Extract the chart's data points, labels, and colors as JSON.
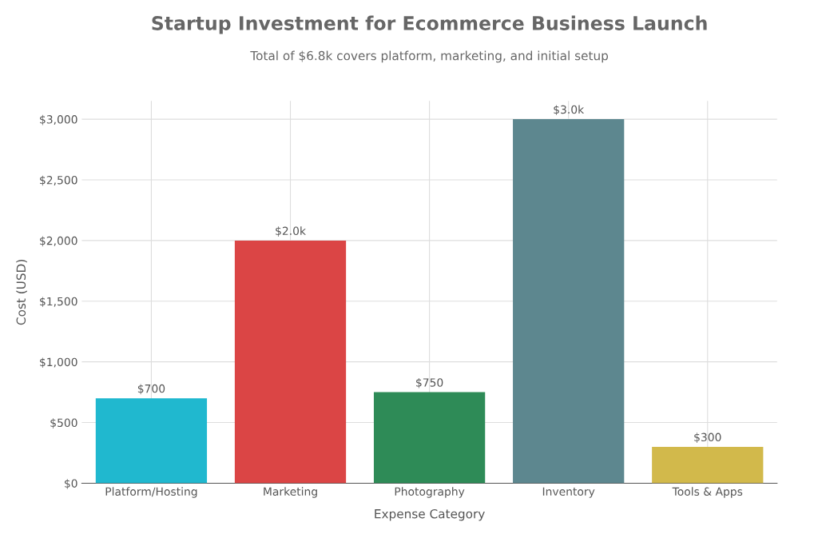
{
  "chart_data": {
    "type": "bar",
    "title": "Startup Investment for Ecommerce Business Launch",
    "subtitle": "Total of $6.8k covers platform, marketing, and initial setup",
    "xlabel": "Expense Category",
    "ylabel": "Cost (USD)",
    "categories": [
      "Platform/Hosting",
      "Marketing",
      "Photography",
      "Inventory",
      "Tools & Apps"
    ],
    "values": [
      700,
      2000,
      750,
      3000,
      300
    ],
    "colors": [
      "#20b8cf",
      "#db4545",
      "#2e8b57",
      "#5d878f",
      "#d2b94b"
    ],
    "value_labels": [
      "$700",
      "$2.0k",
      "$750",
      "$3.0k",
      "$300"
    ],
    "ylim": [
      0,
      3150
    ],
    "yticks": [
      {
        "value": 0,
        "label": "$0"
      },
      {
        "value": 500,
        "label": "$500"
      },
      {
        "value": 1000,
        "label": "$1,000"
      },
      {
        "value": 1500,
        "label": "$1,500"
      },
      {
        "value": 2000,
        "label": "$2,000"
      },
      {
        "value": 2500,
        "label": "$2,500"
      },
      {
        "value": 3000,
        "label": "$3,000"
      }
    ],
    "grid": true,
    "legend": false
  }
}
